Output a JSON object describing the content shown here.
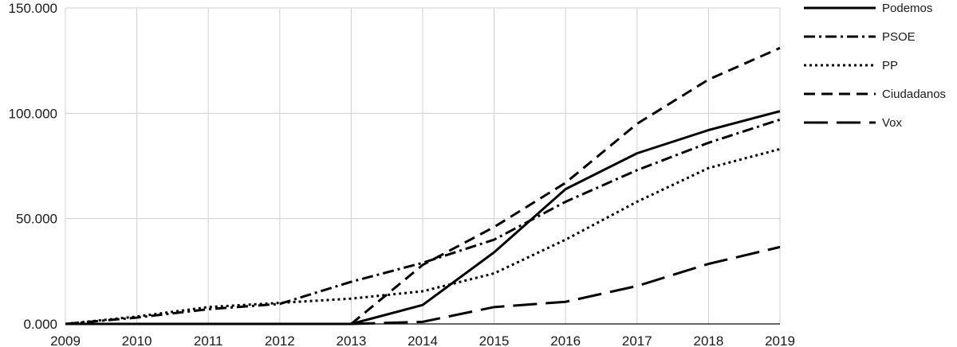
{
  "chart_data": {
    "type": "line",
    "title": "",
    "xlabel": "",
    "ylabel": "",
    "x": [
      "2009",
      "2010",
      "2011",
      "2012",
      "2013",
      "2014",
      "2015",
      "2016",
      "2017",
      "2018",
      "2019"
    ],
    "ylim": [
      0,
      150000
    ],
    "y_ticks": [
      {
        "value": 0,
        "label": "0.000"
      },
      {
        "value": 50000,
        "label": "50.000"
      },
      {
        "value": 100000,
        "label": "100.000"
      },
      {
        "value": 150000,
        "label": "150.000"
      }
    ],
    "grid": true,
    "legend_position": "right",
    "series": [
      {
        "name": "Podemos",
        "dash": "solid",
        "values": [
          0,
          0,
          0,
          0,
          0,
          9000,
          34000,
          64000,
          81000,
          92000,
          101000
        ]
      },
      {
        "name": "PSOE",
        "dash": "dashdot",
        "values": [
          0,
          3000,
          7000,
          9500,
          20000,
          29000,
          40000,
          58000,
          73000,
          86000,
          97000
        ]
      },
      {
        "name": "PP",
        "dash": "dotted",
        "values": [
          0,
          3500,
          8000,
          10000,
          12000,
          15500,
          24000,
          40000,
          58000,
          74000,
          83000
        ]
      },
      {
        "name": "Ciudadanos",
        "dash": "dashed",
        "values": [
          null,
          null,
          null,
          null,
          0,
          28000,
          46000,
          67000,
          95000,
          116000,
          131000
        ]
      },
      {
        "name": "Vox",
        "dash": "longdash",
        "values": [
          null,
          null,
          null,
          null,
          0,
          1000,
          8000,
          10500,
          18000,
          28500,
          36500
        ]
      }
    ]
  },
  "colors": {
    "line": "#000000",
    "grid": "#cfcfcf",
    "text": "#1a1a1a"
  }
}
